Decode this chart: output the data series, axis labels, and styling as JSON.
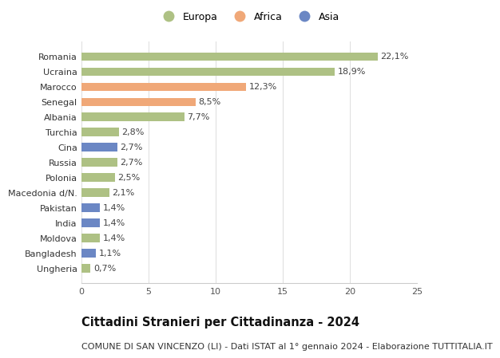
{
  "categories": [
    "Ungheria",
    "Bangladesh",
    "Moldova",
    "India",
    "Pakistan",
    "Macedonia d/N.",
    "Polonia",
    "Russia",
    "Cina",
    "Turchia",
    "Albania",
    "Senegal",
    "Marocco",
    "Ucraina",
    "Romania"
  ],
  "values": [
    0.7,
    1.1,
    1.4,
    1.4,
    1.4,
    2.1,
    2.5,
    2.7,
    2.7,
    2.8,
    7.7,
    8.5,
    12.3,
    18.9,
    22.1
  ],
  "labels": [
    "0,7%",
    "1,1%",
    "1,4%",
    "1,4%",
    "1,4%",
    "2,1%",
    "2,5%",
    "2,7%",
    "2,7%",
    "2,8%",
    "7,7%",
    "8,5%",
    "12,3%",
    "18,9%",
    "22,1%"
  ],
  "colors": [
    "#aec184",
    "#6b87c4",
    "#aec184",
    "#6b87c4",
    "#6b87c4",
    "#aec184",
    "#aec184",
    "#aec184",
    "#6b87c4",
    "#aec184",
    "#aec184",
    "#f0a878",
    "#f0a878",
    "#aec184",
    "#aec184"
  ],
  "legend_labels": [
    "Europa",
    "Africa",
    "Asia"
  ],
  "legend_colors": [
    "#aec184",
    "#f0a878",
    "#6b87c4"
  ],
  "xlim": [
    0,
    25
  ],
  "xticks": [
    0,
    5,
    10,
    15,
    20,
    25
  ],
  "title": "Cittadini Stranieri per Cittadinanza - 2024",
  "subtitle": "COMUNE DI SAN VINCENZO (LI) - Dati ISTAT al 1° gennaio 2024 - Elaborazione TUTTITALIA.IT",
  "bg_color": "#ffffff",
  "bar_height": 0.55,
  "label_fontsize": 8,
  "title_fontsize": 10.5,
  "subtitle_fontsize": 8,
  "tick_fontsize": 8
}
